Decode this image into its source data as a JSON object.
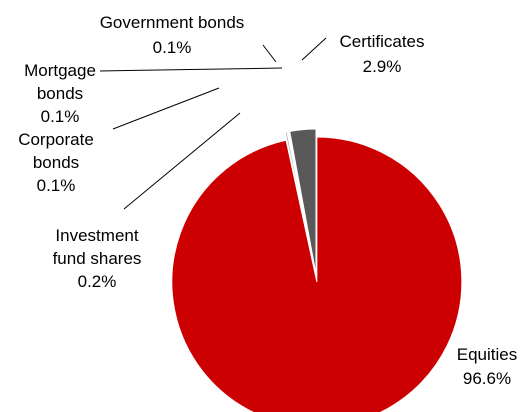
{
  "chart_data": {
    "type": "pie",
    "title": "",
    "start_angle_deg": 0,
    "direction": "clockwise",
    "slices": [
      {
        "name": "Equities",
        "value": 96.6,
        "label": "96.6%",
        "color": "#CC0000",
        "exploded": true
      },
      {
        "name": "Investment fund shares",
        "value": 0.2,
        "label": "0.2%",
        "color": "#A6A6A6",
        "exploded": false
      },
      {
        "name": "Corporate bonds",
        "value": 0.1,
        "label": "0.1%",
        "color": "#FFFFFF",
        "exploded": false
      },
      {
        "name": "Mortgage bonds",
        "value": 0.1,
        "label": "0.1%",
        "color": "#7F7F7F",
        "exploded": false
      },
      {
        "name": "Government bonds",
        "value": 0.1,
        "label": "0.1%",
        "color": "#9BBB59",
        "exploded": false
      },
      {
        "name": "Certificates",
        "value": 2.9,
        "label": "2.9%",
        "color": "#595959",
        "exploded": false
      }
    ],
    "labels": {
      "government_bonds": {
        "line1": "Government bonds",
        "line2": "0.1%"
      },
      "certificates": {
        "line1": "Certificates",
        "line2": "2.9%"
      },
      "mortgage_bonds": {
        "line1": "Mortgage",
        "line2": "bonds",
        "line3": "0.1%"
      },
      "corporate_bonds": {
        "line1": "Corporate",
        "line2": "bonds",
        "line3": "0.1%"
      },
      "investment_fund_shares": {
        "line1": "Investment",
        "line2": "fund shares",
        "line3": "0.2%"
      },
      "equities": {
        "line1": "Equities",
        "line2": "96.6%"
      }
    }
  }
}
